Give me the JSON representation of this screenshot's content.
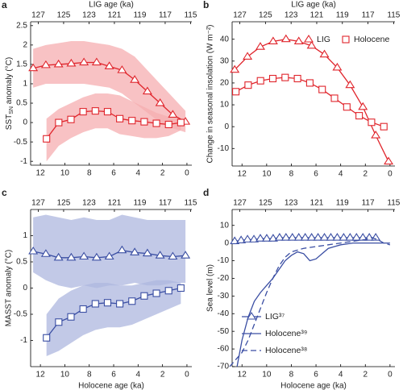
{
  "chart_data": [
    {
      "type": "line",
      "label": "a",
      "x2label": "LIG age (ka)",
      "ylabel": [
        "SST",
        "SN",
        " anomaly (°C)"
      ],
      "xlim": [
        12.8,
        -0.4
      ],
      "x2lim": [
        127.6,
        114.9
      ],
      "ylim": [
        -1.1,
        2.6
      ],
      "xticks": [
        12,
        10,
        8,
        6,
        4,
        2,
        0
      ],
      "x2ticks": [
        127,
        125,
        123,
        121,
        119,
        117,
        115
      ],
      "yticks": [
        -1,
        -0.5,
        0,
        0.5,
        1,
        1.5,
        2,
        2.5
      ],
      "series": [
        {
          "color": "#e0252c",
          "band_color": "#f6aeb0",
          "marker": "triangle",
          "xaxis": "x2",
          "x": [
            127.4,
            126.4,
            125.4,
            124.4,
            123.4,
            122.4,
            121.4,
            120.4,
            119.4,
            118.4,
            117.4,
            116.4,
            115.4
          ],
          "values": [
            1.4,
            1.48,
            1.5,
            1.52,
            1.55,
            1.55,
            1.45,
            1.35,
            1.1,
            0.8,
            0.5,
            0.2,
            0.02
          ],
          "upper": [
            1.9,
            2.0,
            2.05,
            2.1,
            2.1,
            2.05,
            2.0,
            1.9,
            1.7,
            1.35,
            1.0,
            0.65,
            0.3
          ],
          "lower": [
            0.9,
            1.0,
            1.0,
            1.0,
            1.0,
            0.95,
            0.9,
            0.75,
            0.5,
            0.25,
            0.0,
            -0.15,
            -0.25
          ]
        },
        {
          "color": "#e0252c",
          "band_color": "#f6aeb0",
          "marker": "square",
          "xaxis": "x",
          "x": [
            11.5,
            10.5,
            9.5,
            8.5,
            7.5,
            6.5,
            5.5,
            4.5,
            3.5,
            2.5,
            1.5,
            0.5
          ],
          "values": [
            -0.42,
            0.0,
            0.08,
            0.28,
            0.3,
            0.28,
            0.1,
            0.05,
            0.02,
            -0.02,
            -0.05,
            0.0
          ],
          "upper": [
            0.1,
            0.35,
            0.5,
            0.65,
            0.75,
            0.75,
            0.7,
            0.55,
            0.4,
            0.25,
            0.15,
            0.1
          ],
          "lower": [
            -1.0,
            -0.6,
            -0.4,
            -0.25,
            -0.15,
            -0.15,
            -0.3,
            -0.35,
            -0.4,
            -0.4,
            -0.35,
            -0.2
          ]
        }
      ]
    },
    {
      "type": "line",
      "label": "b",
      "x2label": "LIG age (ka)",
      "ylabel": "Change in seasonal insolation (W m⁻²)",
      "xlim": [
        12.8,
        -0.4
      ],
      "x2lim": [
        127.6,
        114.9
      ],
      "ylim": [
        -18,
        48
      ],
      "xticks": [
        12,
        10,
        8,
        6,
        4,
        2,
        0
      ],
      "x2ticks": [
        127,
        125,
        123,
        121,
        119,
        117,
        115
      ],
      "yticks": [
        -10,
        0,
        10,
        20,
        30,
        40
      ],
      "legend": "upper right",
      "series": [
        {
          "name": "LIG",
          "color": "#e0252c",
          "marker": "triangle",
          "xaxis": "x2",
          "x": [
            127.4,
            126.4,
            125.4,
            124.4,
            123.4,
            122.4,
            121.4,
            120.4,
            119.4,
            118.4,
            117.4,
            116.4,
            115.4
          ],
          "values": [
            26,
            32,
            36.5,
            39,
            40,
            39,
            37,
            33,
            27,
            19,
            9,
            -4,
            -16
          ]
        },
        {
          "name": "Holocene",
          "color": "#e0252c",
          "marker": "square",
          "xaxis": "x",
          "x": [
            12.5,
            11.5,
            10.5,
            9.5,
            8.5,
            7.5,
            6.5,
            5.5,
            4.5,
            3.5,
            2.5,
            1.5,
            0.5
          ],
          "values": [
            16,
            19,
            21,
            22,
            22.5,
            22,
            20,
            17,
            13,
            9,
            5,
            2,
            0
          ]
        }
      ]
    },
    {
      "type": "line",
      "label": "c",
      "xlabel": "Holocene age (ka)",
      "ylabel": "MASST anomaly (°C)",
      "xlim": [
        12.8,
        -0.4
      ],
      "x2lim": [
        127.6,
        114.9
      ],
      "ylim": [
        -1.5,
        1.5
      ],
      "xticks": [
        12,
        10,
        8,
        6,
        4,
        2,
        0
      ],
      "x2ticks": [
        127,
        125,
        123,
        121,
        119,
        117,
        115
      ],
      "yticks": [
        -1,
        -0.5,
        0,
        0.5,
        1
      ],
      "series": [
        {
          "color": "#3a4ea3",
          "band_color": "#aeb7df",
          "marker": "triangle",
          "xaxis": "x2",
          "x": [
            127.4,
            126.4,
            125.4,
            124.4,
            123.4,
            122.4,
            121.4,
            120.4,
            119.4,
            118.4,
            117.4,
            116.4,
            115.4
          ],
          "values": [
            0.7,
            0.65,
            0.58,
            0.58,
            0.6,
            0.58,
            0.6,
            0.72,
            0.68,
            0.66,
            0.62,
            0.6,
            0.62
          ],
          "upper": [
            1.35,
            1.4,
            1.35,
            1.3,
            1.35,
            1.3,
            1.3,
            1.4,
            1.35,
            1.3,
            1.3,
            1.3,
            1.3
          ],
          "lower": [
            0.3,
            0.15,
            0.05,
            0.0,
            0.05,
            0.0,
            0.05,
            0.05,
            0.1,
            0.05,
            0.05,
            0.1,
            0.1
          ]
        },
        {
          "color": "#3a4ea3",
          "band_color": "#aeb7df",
          "marker": "square",
          "xaxis": "x",
          "x": [
            11.5,
            10.5,
            9.5,
            8.5,
            7.5,
            6.5,
            5.5,
            4.5,
            3.5,
            2.5,
            1.5,
            0.5
          ],
          "values": [
            -0.95,
            -0.65,
            -0.55,
            -0.4,
            -0.3,
            -0.28,
            -0.3,
            -0.25,
            -0.15,
            -0.1,
            -0.05,
            0.0
          ],
          "upper": [
            -0.5,
            -0.2,
            -0.05,
            0.05,
            0.1,
            0.1,
            0.05,
            0.05,
            0.1,
            0.15,
            0.15,
            0.1
          ],
          "lower": [
            -1.3,
            -1.2,
            -1.05,
            -0.9,
            -0.8,
            -0.75,
            -0.75,
            -0.7,
            -0.6,
            -0.5,
            -0.4,
            -0.3
          ]
        }
      ]
    },
    {
      "type": "line",
      "label": "d",
      "xlabel": "Holocene age (ka)",
      "ylabel": "Sea level (m)",
      "xlim": [
        12.8,
        -0.4
      ],
      "x2lim": [
        127.6,
        114.9
      ],
      "ylim": [
        -70,
        19
      ],
      "xticks": [
        12,
        10,
        8,
        6,
        4,
        2,
        0
      ],
      "x2ticks": [
        127,
        125,
        123,
        121,
        119,
        117,
        115
      ],
      "yticks": [
        -70,
        -60,
        -50,
        -40,
        -30,
        -20,
        -10,
        0,
        10
      ],
      "legend": "lower left",
      "series": [
        {
          "name": "LIG³⁷",
          "color": "#3a4ea3",
          "marker": "triangle",
          "xaxis": "x2",
          "x": [
            127.4,
            126.9,
            126.4,
            125.9,
            125.4,
            124.9,
            124.4,
            123.9,
            123.4,
            122.9,
            122.4,
            121.9,
            121.4,
            120.9,
            120.4,
            119.9,
            119.4,
            118.9,
            118.4,
            117.9,
            117.4,
            116.9,
            116.4
          ],
          "values": [
            1,
            1.5,
            2,
            2,
            2.5,
            2.5,
            2.5,
            3,
            3,
            3,
            3,
            3,
            3,
            3,
            3,
            3,
            3,
            3,
            3,
            3,
            3,
            3,
            3
          ]
        },
        {
          "name": "Holocene³⁹",
          "color": "#3a4ea3",
          "xaxis": "x",
          "x": [
            12.4,
            12,
            11.5,
            11,
            10.5,
            10,
            9.5,
            9,
            8.5,
            8,
            7.5,
            7,
            6.5,
            6,
            5.5,
            5,
            4.5,
            4,
            3,
            2,
            1,
            0
          ],
          "values": [
            -70,
            -55,
            -42,
            -33,
            -28,
            -24,
            -20,
            -15,
            -10,
            -7,
            -5,
            -6,
            -10,
            -9,
            -6,
            -3,
            -2,
            -1,
            0,
            0,
            0,
            0
          ]
        },
        {
          "name": "Holocene³⁸",
          "color": "#3a4ea3",
          "dash": "7,4",
          "xaxis": "x",
          "x": [
            13,
            12.5,
            12,
            11.5,
            11,
            10.5,
            10,
            9.5,
            9,
            8.5,
            8,
            7,
            6,
            5,
            4,
            3,
            2,
            1.5,
            1,
            0.5,
            0
          ],
          "values": [
            -70,
            -66,
            -62,
            -55,
            -46,
            -37,
            -28,
            -20,
            -13,
            -8,
            -5,
            -3,
            -2,
            -1,
            0,
            1,
            2,
            3,
            2,
            0,
            -1
          ]
        }
      ]
    }
  ]
}
